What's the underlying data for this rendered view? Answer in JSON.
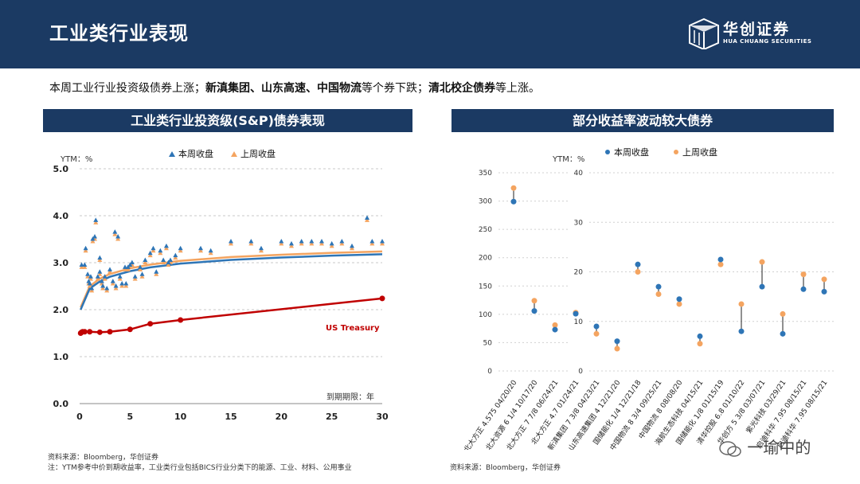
{
  "header": {
    "title": "工业类行业表现"
  },
  "logo": {
    "cn": "华创证券",
    "en": "HUA CHUANG SECURITIES"
  },
  "summary": {
    "p1": "本周工业行业投资级债券上涨；",
    "b1": "新滇集团、山东高速、中国物流",
    "p2": "等个券下跌；",
    "b2": "清北校企债券",
    "p3": "等上涨。"
  },
  "colors": {
    "this_week": "#2e75b6",
    "last_week": "#f4a460",
    "treasury": "#c00000",
    "header": "#1b3a63"
  },
  "left_panel": {
    "title": "工业类行业投资级(S&P)债券表现",
    "source": "资料来源：Bloomberg，华创证券",
    "note": "注：YTM参考中价到期收益率，工业类行业包括BICS行业分类下的能源、工业、材料、公用事业"
  },
  "right_panel": {
    "title": "部分收益率波动较大债券",
    "source": "资料来源：Bloomberg，华创证券"
  },
  "watermark": "一瑜中的",
  "chart_data": [
    {
      "type": "scatter",
      "title": "工业类行业投资级(S&P)债券表现",
      "ylabel": "YTM：%",
      "xlabel": "到期期限：年",
      "xlim": [
        0,
        30
      ],
      "ylim": [
        0,
        5
      ],
      "xticks": [
        0,
        5,
        10,
        15,
        20,
        25,
        30
      ],
      "yticks": [
        "0.0",
        "1.0",
        "2.0",
        "3.0",
        "4.0",
        "5.0"
      ],
      "legend": [
        "本周收盘",
        "上周收盘"
      ],
      "treasury_label": "US Treasury",
      "series": [
        {
          "name": "本周收盘",
          "x": [
            0.2,
            0.5,
            0.6,
            0.8,
            0.9,
            1.0,
            1.1,
            1.3,
            1.5,
            1.6,
            1.8,
            2.0,
            2.0,
            2.2,
            2.5,
            2.7,
            3.0,
            3.3,
            3.5,
            3.8,
            4.0,
            4.2,
            4.5,
            4.8,
            5.0,
            5.2,
            5.5,
            6.0,
            6.5,
            7.0,
            7.3,
            7.6,
            8.0,
            8.3,
            8.6,
            9.0,
            9.5,
            10.0,
            12.0,
            13.0,
            15.0,
            17.0,
            18.0,
            20.0,
            21.0,
            22.0,
            23.0,
            24.0,
            25.0,
            26.0,
            27.0,
            28.5,
            29.0,
            30.0,
            1.2,
            2.3,
            3.6,
            4.6,
            6.2,
            8.8
          ],
          "y": [
            2.95,
            2.95,
            3.3,
            2.75,
            2.6,
            2.55,
            2.7,
            3.5,
            3.55,
            3.9,
            2.7,
            2.8,
            3.1,
            2.6,
            2.7,
            2.45,
            2.85,
            2.6,
            3.65,
            3.55,
            2.7,
            2.55,
            2.9,
            2.9,
            2.95,
            3.0,
            2.7,
            2.9,
            3.05,
            3.2,
            3.3,
            2.8,
            3.25,
            3.05,
            3.35,
            3.05,
            3.15,
            3.3,
            3.3,
            3.25,
            3.45,
            3.45,
            3.3,
            3.45,
            3.4,
            3.45,
            3.45,
            3.45,
            3.4,
            3.45,
            3.35,
            3.95,
            3.45,
            3.45,
            2.45,
            2.5,
            2.5,
            2.55,
            2.75,
            3.0
          ]
        },
        {
          "name": "上周收盘",
          "x": [
            0.2,
            0.5,
            0.6,
            0.8,
            0.9,
            1.0,
            1.1,
            1.3,
            1.5,
            1.6,
            1.8,
            2.0,
            2.0,
            2.2,
            2.5,
            2.7,
            3.0,
            3.3,
            3.5,
            3.8,
            4.0,
            4.2,
            4.5,
            4.8,
            5.0,
            5.2,
            5.5,
            6.0,
            6.5,
            7.0,
            7.3,
            7.6,
            8.0,
            8.3,
            8.6,
            9.0,
            9.5,
            10.0,
            12.0,
            13.0,
            15.0,
            17.0,
            18.0,
            20.0,
            21.0,
            22.0,
            23.0,
            24.0,
            25.0,
            26.0,
            27.0,
            28.5,
            29.0,
            30.0,
            1.2,
            2.3,
            3.6,
            4.6,
            6.2,
            8.8
          ],
          "y": [
            2.9,
            2.9,
            3.25,
            2.7,
            2.55,
            2.5,
            2.65,
            3.45,
            3.5,
            3.85,
            2.65,
            2.75,
            3.05,
            2.55,
            2.65,
            2.4,
            2.8,
            2.55,
            3.6,
            3.5,
            2.65,
            2.5,
            2.85,
            2.85,
            2.9,
            2.95,
            2.65,
            2.85,
            3.0,
            3.15,
            3.25,
            2.75,
            3.2,
            3.0,
            3.3,
            3.0,
            3.1,
            3.25,
            3.25,
            3.2,
            3.4,
            3.4,
            3.25,
            3.4,
            3.35,
            3.4,
            3.4,
            3.4,
            3.35,
            3.4,
            3.3,
            3.9,
            3.4,
            3.4,
            2.4,
            2.45,
            2.45,
            2.5,
            2.7,
            2.95
          ]
        },
        {
          "name": "本周拟合",
          "x": [
            0.1,
            1,
            2,
            3,
            5,
            7,
            10,
            15,
            20,
            25,
            30
          ],
          "y": [
            2.0,
            2.45,
            2.6,
            2.7,
            2.82,
            2.9,
            2.98,
            3.06,
            3.11,
            3.15,
            3.18
          ]
        },
        {
          "name": "上周拟合",
          "x": [
            0.1,
            1,
            2,
            3,
            5,
            7,
            10,
            15,
            20,
            25,
            30
          ],
          "y": [
            2.05,
            2.5,
            2.66,
            2.76,
            2.88,
            2.96,
            3.04,
            3.12,
            3.17,
            3.21,
            3.24
          ]
        },
        {
          "name": "US Treasury",
          "x": [
            0.1,
            0.2,
            0.3,
            0.5,
            1,
            2,
            3,
            5,
            7,
            10,
            30
          ],
          "y": [
            1.5,
            1.52,
            1.53,
            1.53,
            1.53,
            1.52,
            1.53,
            1.58,
            1.7,
            1.78,
            2.24
          ]
        }
      ]
    },
    {
      "type": "dot-range",
      "title": "部分收益率波动较大债券",
      "ylabel": "YTM：%",
      "legend": [
        "本周收盘",
        "上周收盘"
      ],
      "left_axis": {
        "ylim": [
          0,
          350
        ],
        "yticks": [
          0,
          50,
          100,
          150,
          200,
          250,
          300,
          350
        ]
      },
      "right_axis": {
        "ylim": [
          0,
          40
        ],
        "yticks": [
          0,
          10,
          20,
          30,
          40
        ]
      },
      "categories": [
        "北大方正 4.575 04/20/20",
        "北大资源 6 1/4 10/17/20",
        "北大方正 7 7/8 06/24/21",
        "北大方正 4.7 01/24/21",
        "新滇集团 7 3/8 04/23/21",
        "山东高速集团 4 12/21/20",
        "国储能化 1/4 12/21/18",
        "中国物流 8 3/4 09/25/21",
        "中国物流 8 08/08/20",
        "海航生态科技 04/15/21",
        "国储能化 1/8 01/15/19",
        "清华控股 6.8 01/10/22",
        "华创方 5 3/8 03/07/21",
        "紫光科技 03/29/21",
        "启迪科华 7.95 08/15/21",
        "启迪科华 7.95 08/15/21"
      ],
      "axis": [
        "left",
        "left",
        "left",
        "left",
        "right",
        "right",
        "right",
        "right",
        "right",
        "right",
        "right",
        "right",
        "right",
        "right",
        "right",
        "right"
      ],
      "this_week": [
        299,
        106,
        73,
        101,
        9,
        6,
        21.5,
        17,
        14.5,
        7,
        22.5,
        8,
        17,
        7.5,
        16.5,
        16
      ],
      "last_week": [
        323,
        124,
        81,
        103,
        7.5,
        4.5,
        20,
        15.5,
        13.5,
        5.5,
        21.5,
        13.5,
        22,
        11.5,
        19.5,
        18.5
      ]
    }
  ]
}
